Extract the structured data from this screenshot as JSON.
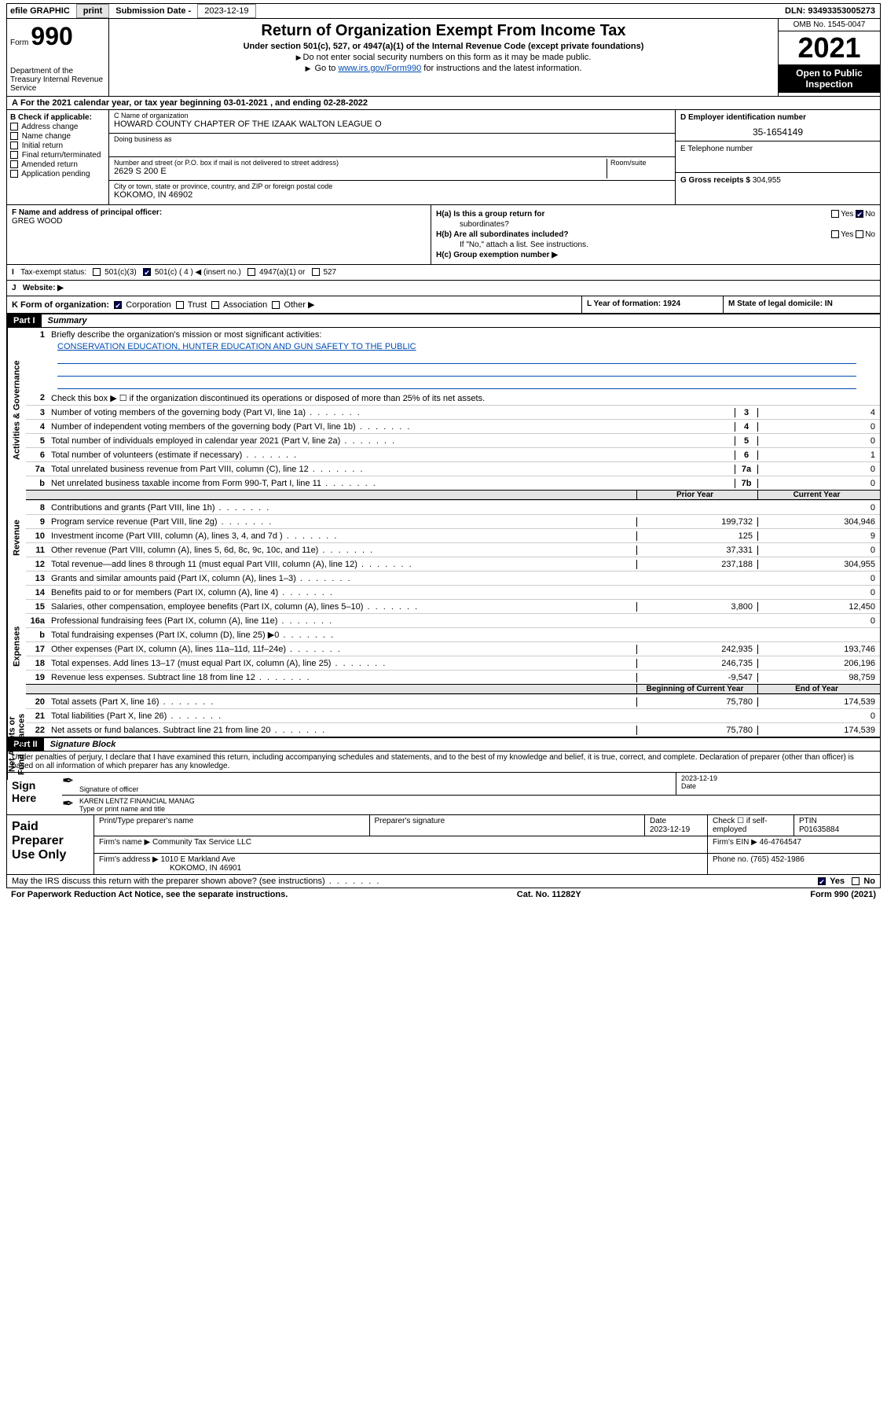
{
  "topbar": {
    "efile": "efile GRAPHIC",
    "print": "print",
    "subdate_label": "Submission Date - ",
    "subdate": "2023-12-19",
    "dln": "DLN: 93493353005273"
  },
  "header": {
    "form_prefix": "Form",
    "form_num": "990",
    "dept": "Department of the Treasury\nInternal Revenue Service",
    "title": "Return of Organization Exempt From Income Tax",
    "subtitle": "Under section 501(c), 527, or 4947(a)(1) of the Internal Revenue Code (except private foundations)",
    "inst1": "Do not enter social security numbers on this form as it may be made public.",
    "inst2_pre": "Go to ",
    "inst2_link": "www.irs.gov/Form990",
    "inst2_post": " for instructions and the latest information.",
    "omb": "OMB No. 1545-0047",
    "year": "2021",
    "open": "Open to Public Inspection"
  },
  "rowA": "For the 2021 calendar year, or tax year beginning 03-01-2021   , and ending 02-28-2022",
  "colB": {
    "header": "B Check if applicable:",
    "opts": [
      "Address change",
      "Name change",
      "Initial return",
      "Final return/terminated",
      "Amended return",
      "Application pending"
    ]
  },
  "colCD": {
    "c_label": "C Name of organization",
    "c_name": "HOWARD COUNTY CHAPTER OF THE IZAAK WALTON LEAGUE O",
    "dba_label": "Doing business as",
    "addr_label": "Number and street (or P.O. box if mail is not delivered to street address)",
    "addr": "2629 S 200 E",
    "room_label": "Room/suite",
    "city_label": "City or town, state or province, country, and ZIP or foreign postal code",
    "city": "KOKOMO, IN  46902"
  },
  "colDE": {
    "d_label": "D Employer identification number",
    "ein": "35-1654149",
    "e_label": "E Telephone number",
    "g_label": "G Gross receipts $",
    "g_val": "304,955"
  },
  "rowF": {
    "f_label": "F Name and address of principal officer:",
    "f_name": "GREG WOOD"
  },
  "rowH": {
    "ha": "H(a)  Is this a group return for",
    "ha2": "subordinates?",
    "hb": "H(b)  Are all subordinates included?",
    "hb_note": "If \"No,\" attach a list. See instructions.",
    "hc": "H(c)  Group exemption number ▶",
    "yes": "Yes",
    "no": "No"
  },
  "rowI": {
    "label": "Tax-exempt status:",
    "o1": "501(c)(3)",
    "o2": "501(c) ( 4 ) ◀ (insert no.)",
    "o3": "4947(a)(1) or",
    "o4": "527"
  },
  "rowJ": {
    "label": "Website: ▶"
  },
  "rowK": {
    "label": "K Form of organization:",
    "opts": [
      "Corporation",
      "Trust",
      "Association",
      "Other ▶"
    ]
  },
  "rowL": {
    "label": "L Year of formation: 1924"
  },
  "rowM": {
    "label": "M State of legal domicile: IN"
  },
  "partI": {
    "num": "Part I",
    "title": "Summary"
  },
  "summary": {
    "vl1": "Activities & Governance",
    "vl2": "Revenue",
    "vl3": "Expenses",
    "vl4": "Net Assets or Fund Balances",
    "l1_label": "Briefly describe the organization's mission or most significant activities:",
    "l1_text": "CONSERVATION EDUCATION, HUNTER EDUCATION AND GUN SAFETY TO THE PUBLIC",
    "l2": "Check this box ▶ ☐  if the organization discontinued its operations or disposed of more than 25% of its net assets.",
    "lines_gov": [
      {
        "n": "3",
        "t": "Number of voting members of the governing body (Part VI, line 1a)",
        "b": "3",
        "v": "4"
      },
      {
        "n": "4",
        "t": "Number of independent voting members of the governing body (Part VI, line 1b)",
        "b": "4",
        "v": "0"
      },
      {
        "n": "5",
        "t": "Total number of individuals employed in calendar year 2021 (Part V, line 2a)",
        "b": "5",
        "v": "0"
      },
      {
        "n": "6",
        "t": "Total number of volunteers (estimate if necessary)",
        "b": "6",
        "v": "1"
      },
      {
        "n": "7a",
        "t": "Total unrelated business revenue from Part VIII, column (C), line 12",
        "b": "7a",
        "v": "0"
      },
      {
        "n": "b",
        "t": "Net unrelated business taxable income from Form 990-T, Part I, line 11",
        "b": "7b",
        "v": "0"
      }
    ],
    "col_prior": "Prior Year",
    "col_current": "Current Year",
    "lines_rev": [
      {
        "n": "8",
        "t": "Contributions and grants (Part VIII, line 1h)",
        "p": "",
        "c": "0"
      },
      {
        "n": "9",
        "t": "Program service revenue (Part VIII, line 2g)",
        "p": "199,732",
        "c": "304,946"
      },
      {
        "n": "10",
        "t": "Investment income (Part VIII, column (A), lines 3, 4, and 7d )",
        "p": "125",
        "c": "9"
      },
      {
        "n": "11",
        "t": "Other revenue (Part VIII, column (A), lines 5, 6d, 8c, 9c, 10c, and 11e)",
        "p": "37,331",
        "c": "0"
      },
      {
        "n": "12",
        "t": "Total revenue—add lines 8 through 11 (must equal Part VIII, column (A), line 12)",
        "p": "237,188",
        "c": "304,955"
      }
    ],
    "lines_exp": [
      {
        "n": "13",
        "t": "Grants and similar amounts paid (Part IX, column (A), lines 1–3)",
        "p": "",
        "c": "0"
      },
      {
        "n": "14",
        "t": "Benefits paid to or for members (Part IX, column (A), line 4)",
        "p": "",
        "c": "0"
      },
      {
        "n": "15",
        "t": "Salaries, other compensation, employee benefits (Part IX, column (A), lines 5–10)",
        "p": "3,800",
        "c": "12,450"
      },
      {
        "n": "16a",
        "t": "Professional fundraising fees (Part IX, column (A), line 11e)",
        "p": "",
        "c": "0"
      },
      {
        "n": "b",
        "t": "Total fundraising expenses (Part IX, column (D), line 25) ▶0",
        "p": "shade",
        "c": "shade"
      },
      {
        "n": "17",
        "t": "Other expenses (Part IX, column (A), lines 11a–11d, 11f–24e)",
        "p": "242,935",
        "c": "193,746"
      },
      {
        "n": "18",
        "t": "Total expenses. Add lines 13–17 (must equal Part IX, column (A), line 25)",
        "p": "246,735",
        "c": "206,196"
      },
      {
        "n": "19",
        "t": "Revenue less expenses. Subtract line 18 from line 12",
        "p": "-9,547",
        "c": "98,759"
      }
    ],
    "col_boy": "Beginning of Current Year",
    "col_eoy": "End of Year",
    "lines_net": [
      {
        "n": "20",
        "t": "Total assets (Part X, line 16)",
        "p": "75,780",
        "c": "174,539"
      },
      {
        "n": "21",
        "t": "Total liabilities (Part X, line 26)",
        "p": "",
        "c": "0"
      },
      {
        "n": "22",
        "t": "Net assets or fund balances. Subtract line 21 from line 20",
        "p": "75,780",
        "c": "174,539"
      }
    ]
  },
  "partII": {
    "num": "Part II",
    "title": "Signature Block"
  },
  "sig": {
    "intro": "Under penalties of perjury, I declare that I have examined this return, including accompanying schedules and statements, and to the best of my knowledge and belief, it is true, correct, and complete. Declaration of preparer (other than officer) is based on all information of which preparer has any knowledge.",
    "sign_here": "Sign Here",
    "sig_officer": "Signature of officer",
    "date": "Date",
    "date_val": "2023-12-19",
    "name": "KAREN LENTZ FINANCIAL MANAG",
    "name_label": "Type or print name and title"
  },
  "prep": {
    "title": "Paid Preparer Use Only",
    "h1": "Print/Type preparer's name",
    "h2": "Preparer's signature",
    "h3": "Date",
    "h3v": "2023-12-19",
    "h4": "Check ☐ if self-employed",
    "h5": "PTIN",
    "h5v": "P01635884",
    "firm_name_l": "Firm's name   ▶",
    "firm_name": "Community Tax Service LLC",
    "firm_ein_l": "Firm's EIN ▶",
    "firm_ein": "46-4764547",
    "firm_addr_l": "Firm's address ▶",
    "firm_addr": "1010 E Markland Ave",
    "firm_city": "KOKOMO, IN  46901",
    "phone_l": "Phone no.",
    "phone": "(765) 452-1986"
  },
  "footer": {
    "discuss": "May the IRS discuss this return with the preparer shown above? (see instructions)",
    "yes": "Yes",
    "no": "No",
    "paperwork": "For Paperwork Reduction Act Notice, see the separate instructions.",
    "cat": "Cat. No. 11282Y",
    "form": "Form 990 (2021)"
  }
}
